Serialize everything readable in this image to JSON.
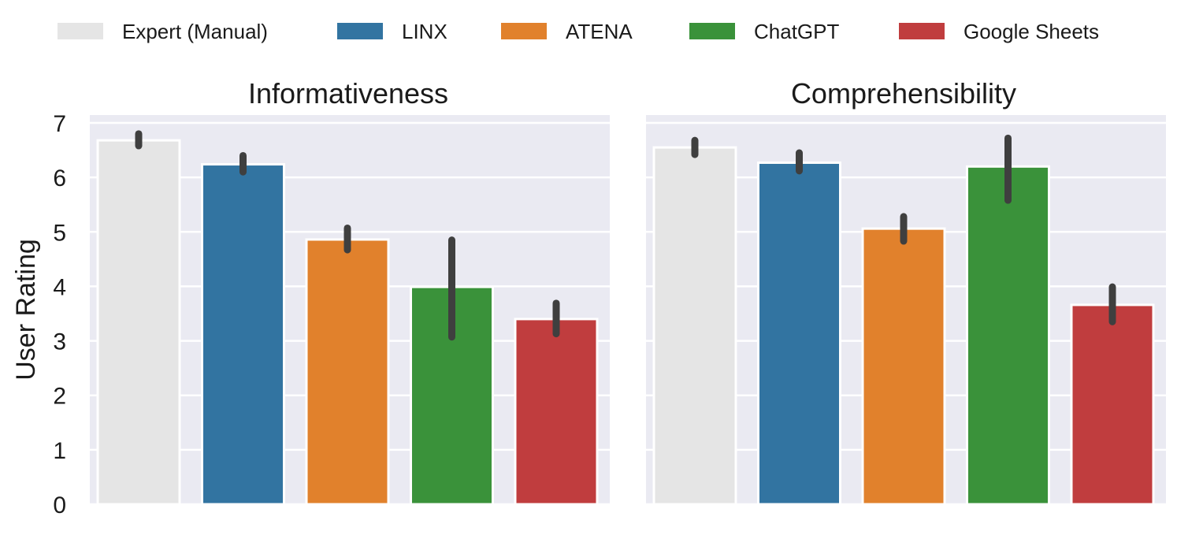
{
  "chart_data": {
    "type": "bar",
    "categories": [
      "Expert (Manual)",
      "LINX",
      "ATENA",
      "ChatGPT",
      "Google Sheets"
    ],
    "colors": [
      "#E5E5E5",
      "#3274A1",
      "#E1812C",
      "#3A923A",
      "#C03D3E"
    ],
    "legend_position": "top-center",
    "ylabel": "User Rating",
    "ylim": [
      0,
      7
    ],
    "yticks": [
      0,
      1,
      2,
      3,
      4,
      5,
      6,
      7
    ],
    "grid": true,
    "panels": [
      {
        "title": "Informativeness",
        "values": [
          6.68,
          6.24,
          4.86,
          3.99,
          3.4
        ],
        "error_low": [
          6.58,
          6.1,
          4.67,
          3.07,
          3.13
        ],
        "error_high": [
          6.8,
          6.4,
          5.07,
          4.85,
          3.69
        ]
      },
      {
        "title": "Comprehensibility",
        "values": [
          6.55,
          6.27,
          5.06,
          6.2,
          3.66
        ],
        "error_low": [
          6.42,
          6.12,
          4.83,
          5.58,
          3.35
        ],
        "error_high": [
          6.68,
          6.45,
          5.28,
          6.72,
          3.99
        ]
      }
    ]
  }
}
